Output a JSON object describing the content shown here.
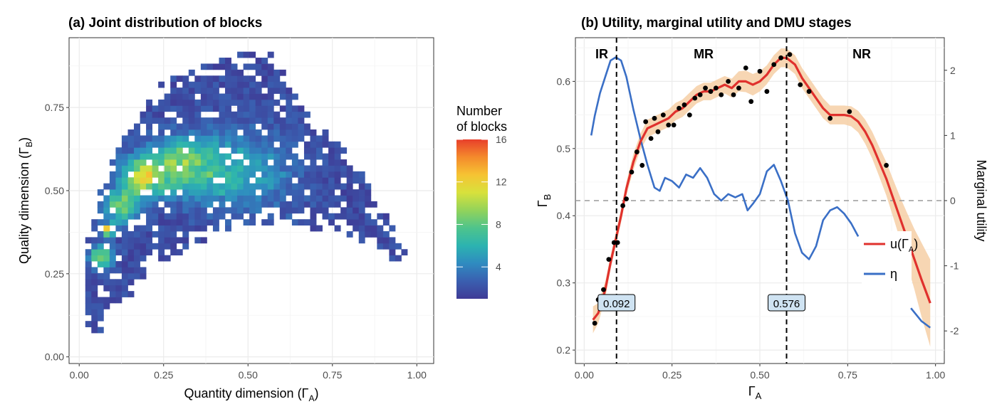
{
  "chart_data": [
    {
      "type": "heatmap",
      "title": "(a) Joint distribution of blocks",
      "xlabel": "Quantity dimension (Γ",
      "xlabel_sub": "A",
      "xlabel_tail": ")",
      "ylabel": "Quality dimension (Γ",
      "ylabel_sub": "B",
      "ylabel_tail": ")",
      "xlim": [
        -0.03,
        1.05
      ],
      "ylim": [
        -0.02,
        0.96
      ],
      "x_ticks": [
        0,
        0.25,
        0.5,
        0.75,
        1
      ],
      "x_tick_labels": [
        "0.00",
        "0.25",
        "0.50",
        "0.75",
        "1.00"
      ],
      "y_ticks": [
        0,
        0.25,
        0.5,
        0.75
      ],
      "y_tick_labels": [
        "0.00",
        "0.25",
        "0.50",
        "0.75"
      ],
      "cell_size": 0.018,
      "colorbar": {
        "title_lines": [
          "Number",
          "of blocks"
        ],
        "min": 1,
        "max": 16,
        "ticks": [
          4,
          8,
          12,
          16
        ],
        "tick_labels": [
          "4",
          "8",
          "12",
          "16"
        ],
        "colors": [
          "#3f3b96",
          "#3a5fb0",
          "#2f8bc0",
          "#2cb3b0",
          "#4ec48c",
          "#93d35a",
          "#d8e13c",
          "#f6c333",
          "#f48a2c",
          "#e8402b"
        ]
      },
      "support_upper": [
        [
          0.02,
          0.33
        ],
        [
          0.05,
          0.47
        ],
        [
          0.1,
          0.6
        ],
        [
          0.15,
          0.7
        ],
        [
          0.2,
          0.77
        ],
        [
          0.25,
          0.83
        ],
        [
          0.3,
          0.86
        ],
        [
          0.38,
          0.88
        ],
        [
          0.45,
          0.9
        ],
        [
          0.5,
          0.92
        ],
        [
          0.56,
          0.92
        ],
        [
          0.6,
          0.87
        ],
        [
          0.65,
          0.77
        ],
        [
          0.7,
          0.7
        ],
        [
          0.75,
          0.67
        ],
        [
          0.8,
          0.61
        ],
        [
          0.85,
          0.53
        ],
        [
          0.9,
          0.44
        ],
        [
          0.95,
          0.36
        ],
        [
          0.99,
          0.32
        ]
      ],
      "support_lower": [
        [
          0.02,
          0.1
        ],
        [
          0.05,
          0.05
        ],
        [
          0.1,
          0.13
        ],
        [
          0.15,
          0.17
        ],
        [
          0.2,
          0.25
        ],
        [
          0.25,
          0.29
        ],
        [
          0.3,
          0.3
        ],
        [
          0.35,
          0.33
        ],
        [
          0.4,
          0.37
        ],
        [
          0.45,
          0.39
        ],
        [
          0.5,
          0.39
        ],
        [
          0.55,
          0.4
        ],
        [
          0.6,
          0.41
        ],
        [
          0.65,
          0.39
        ],
        [
          0.7,
          0.38
        ],
        [
          0.75,
          0.38
        ],
        [
          0.8,
          0.36
        ],
        [
          0.85,
          0.34
        ],
        [
          0.9,
          0.3
        ],
        [
          0.95,
          0.28
        ],
        [
          0.99,
          0.28
        ]
      ],
      "hotspots": [
        {
          "x": 0.088,
          "y": 0.38,
          "value": 16,
          "spread": 0.015
        },
        {
          "x": 0.185,
          "y": 0.54,
          "value": 11,
          "spread": 0.06
        },
        {
          "x": 0.28,
          "y": 0.58,
          "value": 7,
          "spread": 0.07
        },
        {
          "x": 0.065,
          "y": 0.3,
          "value": 9,
          "spread": 0.035
        },
        {
          "x": 0.12,
          "y": 0.45,
          "value": 8,
          "spread": 0.05
        },
        {
          "x": 0.38,
          "y": 0.57,
          "value": 6,
          "spread": 0.1
        },
        {
          "x": 0.53,
          "y": 0.55,
          "value": 4,
          "spread": 0.12
        }
      ]
    },
    {
      "type": "line",
      "title": "(b) Utility, marginal utility and DMU stages",
      "xlabel": "Γ",
      "xlabel_sub": "A",
      "ylabel": "Γ",
      "ylabel_sub": "B",
      "ylabel_right": "Marginal utility",
      "xlim": [
        -0.025,
        1.025
      ],
      "ylim": [
        0.18,
        0.665
      ],
      "y2lim": [
        -2.5,
        2.5
      ],
      "x_ticks": [
        0,
        0.25,
        0.5,
        0.75,
        1
      ],
      "x_tick_labels": [
        "0.00",
        "0.25",
        "0.50",
        "0.75",
        "1.00"
      ],
      "y_ticks": [
        0.2,
        0.3,
        0.4,
        0.5,
        0.6
      ],
      "y_tick_labels": [
        "0.2",
        "0.3",
        "0.4",
        "0.5",
        "0.6"
      ],
      "y2_ticks": [
        -2,
        -1,
        0,
        1,
        2
      ],
      "y2_tick_labels": [
        "-2",
        "-1",
        "0",
        "1",
        "2"
      ],
      "stages": [
        {
          "label": "IR",
          "x": 0.05
        },
        {
          "label": "MR",
          "x": 0.34
        },
        {
          "label": "NR",
          "x": 0.79
        }
      ],
      "vlines": [
        {
          "x": 0.092,
          "label": "0.092"
        },
        {
          "x": 0.576,
          "label": "0.576"
        }
      ],
      "hline_y2": 0,
      "legend_placement": "right",
      "series": [
        {
          "name": "u(Γ",
          "name_sub": "A",
          "name_tail": ")",
          "kind": "line",
          "axis": "left",
          "color": "#e0312d",
          "x": [
            0.025,
            0.04,
            0.06,
            0.075,
            0.09,
            0.105,
            0.12,
            0.14,
            0.16,
            0.18,
            0.2,
            0.22,
            0.24,
            0.26,
            0.28,
            0.3,
            0.32,
            0.34,
            0.36,
            0.38,
            0.4,
            0.42,
            0.44,
            0.46,
            0.48,
            0.5,
            0.52,
            0.54,
            0.56,
            0.576,
            0.6,
            0.62,
            0.64,
            0.66,
            0.68,
            0.7,
            0.72,
            0.74,
            0.76,
            0.78,
            0.8,
            0.82,
            0.84,
            0.86,
            0.88,
            0.9,
            0.92,
            0.94,
            0.96,
            0.985
          ],
          "y": [
            0.245,
            0.255,
            0.29,
            0.33,
            0.365,
            0.4,
            0.44,
            0.48,
            0.51,
            0.53,
            0.535,
            0.54,
            0.545,
            0.555,
            0.56,
            0.57,
            0.58,
            0.585,
            0.585,
            0.59,
            0.595,
            0.59,
            0.6,
            0.6,
            0.595,
            0.6,
            0.61,
            0.625,
            0.635,
            0.635,
            0.625,
            0.605,
            0.59,
            0.575,
            0.56,
            0.55,
            0.55,
            0.55,
            0.548,
            0.54,
            0.525,
            0.505,
            0.48,
            0.455,
            0.425,
            0.395,
            0.365,
            0.335,
            0.305,
            0.27
          ],
          "band_width": [
            0.02,
            0.015,
            0.012,
            0.01,
            0.01,
            0.01,
            0.01,
            0.012,
            0.012,
            0.013,
            0.013,
            0.013,
            0.013,
            0.013,
            0.013,
            0.013,
            0.013,
            0.013,
            0.013,
            0.013,
            0.013,
            0.014,
            0.015,
            0.016,
            0.016,
            0.015,
            0.014,
            0.014,
            0.014,
            0.014,
            0.014,
            0.015,
            0.015,
            0.015,
            0.015,
            0.014,
            0.014,
            0.014,
            0.015,
            0.016,
            0.018,
            0.02,
            0.022,
            0.025,
            0.028,
            0.032,
            0.038,
            0.045,
            0.055,
            0.065
          ],
          "band_color": "#f6cfa6"
        },
        {
          "name": "η",
          "kind": "line",
          "axis": "right",
          "color": "#3a6fc6",
          "x": [
            0.02,
            0.03,
            0.045,
            0.06,
            0.075,
            0.09,
            0.105,
            0.12,
            0.14,
            0.16,
            0.18,
            0.2,
            0.215,
            0.23,
            0.25,
            0.27,
            0.29,
            0.31,
            0.33,
            0.35,
            0.37,
            0.39,
            0.41,
            0.43,
            0.45,
            0.465,
            0.48,
            0.5,
            0.52,
            0.54,
            0.56,
            0.58,
            0.6,
            0.62,
            0.64,
            0.66,
            0.68,
            0.7,
            0.72,
            0.74,
            0.76,
            0.78
          ],
          "y": [
            1.0,
            1.3,
            1.65,
            1.9,
            2.15,
            2.2,
            2.15,
            1.9,
            1.4,
            0.95,
            0.55,
            0.2,
            0.15,
            0.35,
            0.3,
            0.2,
            0.4,
            0.35,
            0.5,
            0.35,
            0.1,
            0.0,
            0.1,
            0.05,
            0.1,
            -0.15,
            -0.05,
            0.1,
            0.45,
            0.55,
            0.3,
            0.0,
            -0.5,
            -0.8,
            -0.9,
            -0.7,
            -0.3,
            -0.15,
            -0.1,
            -0.2,
            -0.35,
            -0.55
          ],
          "tail_x": [
            0.93,
            0.96,
            0.985
          ],
          "tail_y": [
            -1.65,
            -1.85,
            -1.95
          ]
        },
        {
          "name": "",
          "kind": "scatter",
          "axis": "left",
          "color": "#000000",
          "x": [
            0.03,
            0.04,
            0.055,
            0.07,
            0.085,
            0.095,
            0.11,
            0.12,
            0.135,
            0.15,
            0.165,
            0.175,
            0.19,
            0.2,
            0.21,
            0.225,
            0.24,
            0.255,
            0.27,
            0.285,
            0.3,
            0.315,
            0.33,
            0.345,
            0.36,
            0.375,
            0.39,
            0.41,
            0.425,
            0.44,
            0.46,
            0.475,
            0.5,
            0.52,
            0.54,
            0.56,
            0.585,
            0.615,
            0.64,
            0.7,
            0.755,
            0.86
          ],
          "y": [
            0.24,
            0.275,
            0.29,
            0.335,
            0.36,
            0.36,
            0.415,
            0.425,
            0.465,
            0.495,
            0.475,
            0.54,
            0.515,
            0.545,
            0.525,
            0.55,
            0.535,
            0.535,
            0.56,
            0.565,
            0.55,
            0.575,
            0.58,
            0.59,
            0.585,
            0.59,
            0.58,
            0.6,
            0.58,
            0.59,
            0.62,
            0.57,
            0.615,
            0.585,
            0.625,
            0.635,
            0.64,
            0.595,
            0.585,
            0.545,
            0.555,
            0.475
          ]
        }
      ]
    }
  ]
}
